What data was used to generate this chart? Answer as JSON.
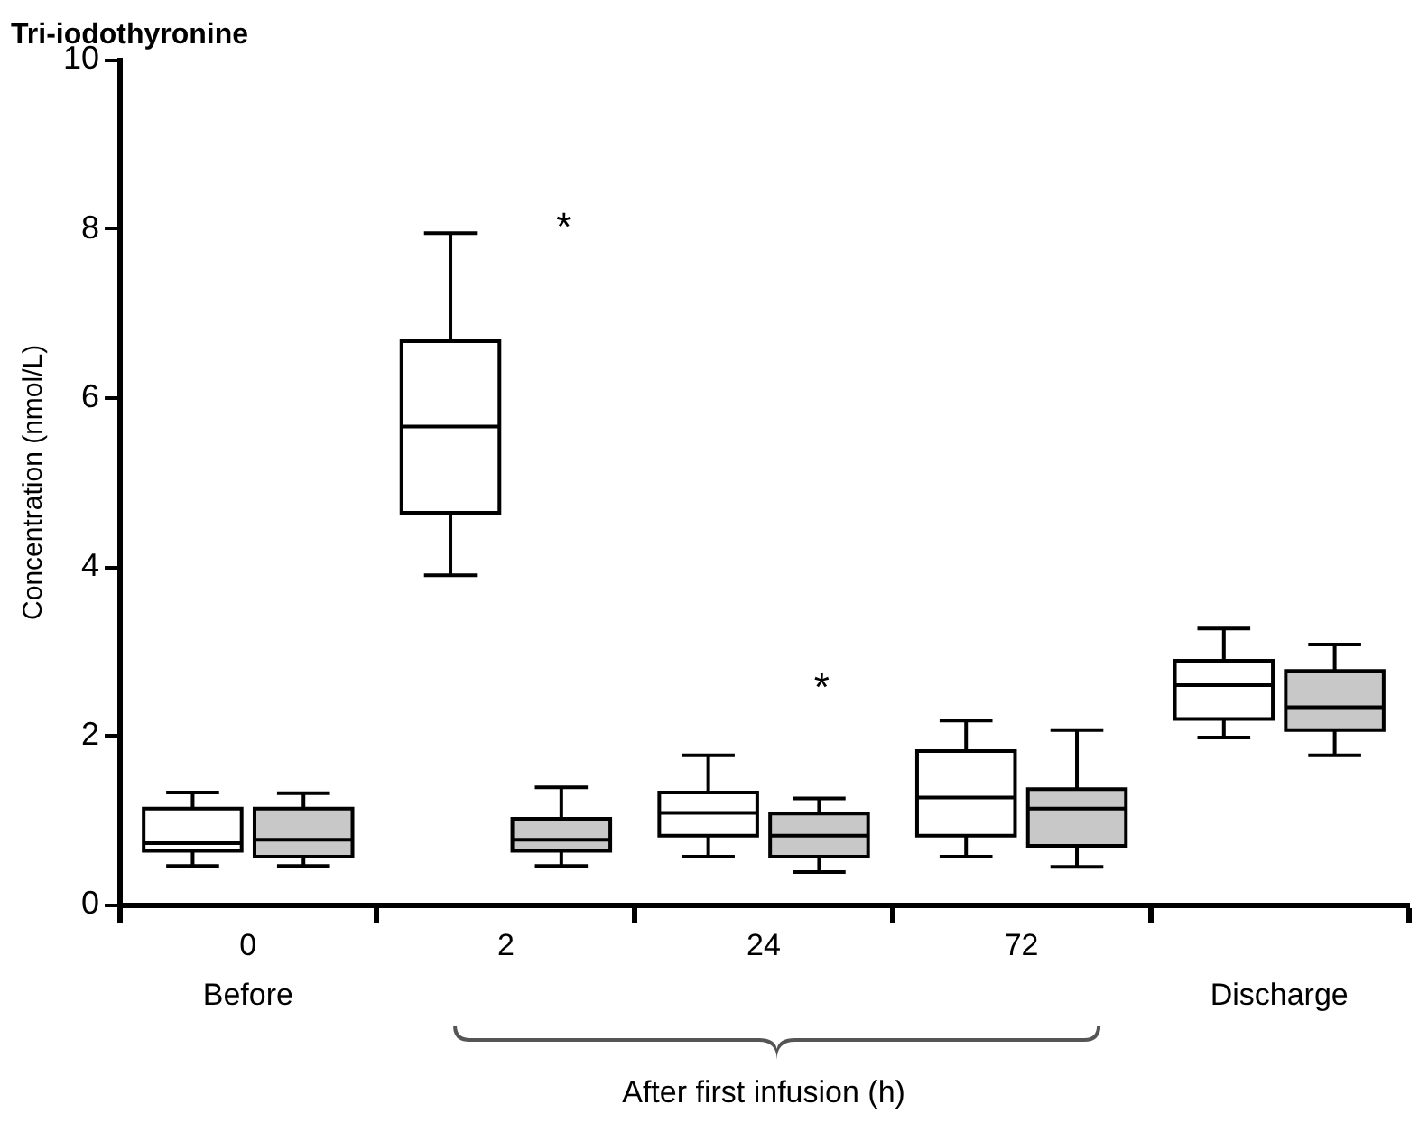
{
  "chart_data": {
    "type": "box",
    "title": "Tri-iodothyronine",
    "ylabel": "Concentration (nmol/L)",
    "xlabel": "After first infusion (h)",
    "categories": [
      "0",
      "2",
      "24",
      "72",
      null
    ],
    "ylim": [
      0,
      10
    ],
    "yticks": [
      0,
      2,
      4,
      6,
      8,
      10
    ],
    "grid": false,
    "legend": false,
    "series": [
      {
        "color": "#ffffff",
        "boxes": [
          {
            "low": 0.46,
            "q1": 0.64,
            "median": 0.73,
            "q3": 1.14,
            "high": 1.33
          },
          {
            "low": 3.9,
            "q1": 4.64,
            "median": 5.66,
            "q3": 6.67,
            "high": 7.95
          },
          {
            "low": 0.57,
            "q1": 0.82,
            "median": 1.09,
            "q3": 1.33,
            "high": 1.77
          },
          {
            "low": 0.57,
            "q1": 0.82,
            "median": 1.27,
            "q3": 1.82,
            "high": 2.18
          },
          {
            "low": 1.98,
            "q1": 2.2,
            "median": 2.6,
            "q3": 2.89,
            "high": 3.27
          }
        ]
      },
      {
        "color": "#c8c8c8",
        "boxes": [
          {
            "low": 0.46,
            "q1": 0.57,
            "median": 0.77,
            "q3": 1.14,
            "high": 1.32
          },
          {
            "low": 0.46,
            "q1": 0.64,
            "median": 0.77,
            "q3": 1.02,
            "high": 1.39
          },
          {
            "low": 0.39,
            "q1": 0.57,
            "median": 0.82,
            "q3": 1.08,
            "high": 1.26
          },
          {
            "low": 0.45,
            "q1": 0.7,
            "median": 1.14,
            "q3": 1.37,
            "high": 2.07
          },
          {
            "low": 1.77,
            "q1": 2.07,
            "median": 2.34,
            "q3": 2.77,
            "high": 3.08
          }
        ]
      }
    ],
    "annotations": [
      "*",
      "*",
      "Before",
      "Discharge"
    ]
  }
}
